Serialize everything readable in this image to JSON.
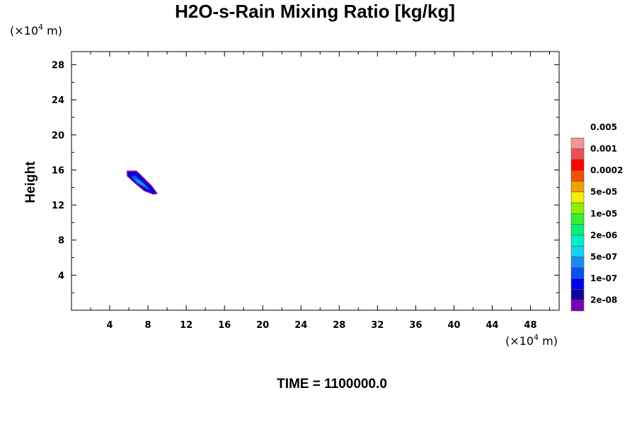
{
  "chart_data": {
    "type": "heatmap",
    "title": "H2O-s-Rain Mixing Ratio [kg/kg]",
    "ylabel": "Height",
    "xlabel": "",
    "y_unit": {
      "prefix": "(×10",
      "exp": "4",
      "suffix": " m)"
    },
    "x_unit": {
      "prefix": "(×10",
      "exp": "4",
      "suffix": " m)"
    },
    "xlim": [
      0,
      51
    ],
    "ylim": [
      0,
      29.5
    ],
    "x_ticks": [
      4,
      8,
      12,
      16,
      20,
      24,
      28,
      32,
      36,
      40,
      44,
      48
    ],
    "y_ticks": [
      4,
      8,
      12,
      16,
      20,
      24,
      28
    ],
    "footer": "TIME = 1100000.0",
    "colorbar": {
      "colors": [
        "#7b00b4",
        "#1400a0",
        "#0000f0",
        "#0a50f0",
        "#1a8cf0",
        "#14d2f0",
        "#00f0c8",
        "#00f078",
        "#32f032",
        "#8cf000",
        "#f0f000",
        "#f0a000",
        "#f05000",
        "#ff0000",
        "#f05050",
        "#f09696"
      ],
      "labels": [
        "2e-08",
        "1e-07",
        "5e-07",
        "2e-06",
        "1e-05",
        "5e-05",
        "0.0002",
        "0.001",
        "0.005"
      ]
    },
    "regions": [
      {
        "level": 0,
        "color": "#7b00b4",
        "points": [
          [
            5.8,
            15.9
          ],
          [
            6.8,
            15.9
          ],
          [
            7.2,
            15.5
          ],
          [
            8.4,
            14.2
          ],
          [
            9.0,
            13.3
          ],
          [
            8.6,
            13.2
          ],
          [
            7.6,
            13.6
          ],
          [
            6.5,
            14.6
          ],
          [
            5.8,
            15.3
          ]
        ]
      },
      {
        "level": 1,
        "color": "#1400a0",
        "points": [
          [
            5.95,
            15.75
          ],
          [
            6.75,
            15.75
          ],
          [
            7.1,
            15.4
          ],
          [
            8.3,
            14.1
          ],
          [
            8.8,
            13.4
          ],
          [
            8.5,
            13.35
          ],
          [
            7.6,
            13.75
          ],
          [
            6.55,
            14.7
          ],
          [
            5.95,
            15.3
          ]
        ]
      },
      {
        "level": 2,
        "color": "#0000f0",
        "points": [
          [
            6.05,
            15.6
          ],
          [
            6.7,
            15.6
          ],
          [
            7.0,
            15.3
          ],
          [
            8.1,
            14.1
          ],
          [
            8.55,
            13.55
          ],
          [
            8.3,
            13.5
          ],
          [
            7.6,
            13.9
          ],
          [
            6.6,
            14.8
          ],
          [
            6.05,
            15.3
          ]
        ]
      },
      {
        "level": 3,
        "color": "#0a50f0",
        "points": [
          [
            6.3,
            15.3
          ],
          [
            6.7,
            15.35
          ],
          [
            7.05,
            15.0
          ],
          [
            7.9,
            14.15
          ],
          [
            8.2,
            13.75
          ],
          [
            7.9,
            13.8
          ],
          [
            7.1,
            14.35
          ],
          [
            6.5,
            14.85
          ]
        ]
      },
      {
        "level": 4,
        "color": "#1a8cf0",
        "points": [
          [
            6.6,
            15.0
          ],
          [
            7.0,
            14.85
          ],
          [
            7.55,
            14.4
          ],
          [
            7.8,
            14.1
          ],
          [
            7.4,
            14.25
          ],
          [
            6.9,
            14.55
          ]
        ]
      }
    ]
  }
}
